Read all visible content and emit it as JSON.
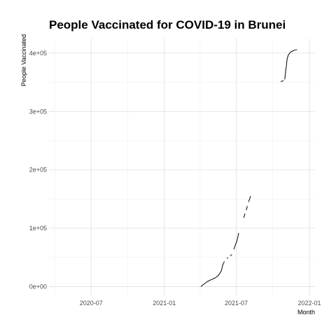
{
  "chart_data": {
    "type": "line",
    "title": "People Vaccinated for COVID-19 in Brunei",
    "xlabel": "Month",
    "ylabel": "People Vaccinated",
    "x_ticks": [
      "2020-07",
      "2021-01",
      "2021-07",
      "2022-01"
    ],
    "y_ticks": [
      "0e+00",
      "1e+05",
      "2e+05",
      "3e+05",
      "4e+05"
    ],
    "xlim": [
      "2020-03-17",
      "2022-01-15"
    ],
    "ylim": [
      -15000,
      425000
    ],
    "grid": true,
    "legend": "none",
    "line_color": "#000000",
    "series": [
      {
        "segments": [
          [
            [
              "2021-04-03",
              0
            ],
            [
              "2021-04-08",
              3000
            ],
            [
              "2021-04-14",
              6000
            ],
            [
              "2021-04-20",
              9000
            ],
            [
              "2021-04-26",
              11000
            ],
            [
              "2021-05-03",
              13000
            ],
            [
              "2021-05-09",
              15000
            ],
            [
              "2021-05-15",
              18000
            ],
            [
              "2021-05-20",
              22000
            ],
            [
              "2021-05-25",
              28000
            ],
            [
              "2021-05-28",
              37000
            ],
            [
              "2021-06-01",
              43000
            ]
          ],
          [
            [
              "2021-06-08",
              48000
            ],
            [
              "2021-06-10",
              50000
            ]
          ],
          [
            [
              "2021-06-16",
              53000
            ],
            [
              "2021-06-20",
              55000
            ]
          ],
          [
            [
              "2021-06-25",
              64000
            ],
            [
              "2021-06-28",
              70000
            ],
            [
              "2021-07-02",
              77000
            ],
            [
              "2021-07-05",
              85000
            ],
            [
              "2021-07-07",
              92000
            ]
          ],
          [
            [
              "2021-07-20",
              118000
            ],
            [
              "2021-07-23",
              125000
            ]
          ],
          [
            [
              "2021-07-26",
              131000
            ],
            [
              "2021-07-29",
              138000
            ]
          ],
          [
            [
              "2021-08-01",
              145000
            ],
            [
              "2021-08-06",
              155000
            ]
          ],
          [
            [
              "2021-10-21",
              351000
            ],
            [
              "2021-10-28",
              353000
            ]
          ],
          [
            [
              "2021-10-31",
              355000
            ],
            [
              "2021-11-02",
              368000
            ],
            [
              "2021-11-04",
              378000
            ],
            [
              "2021-11-06",
              390000
            ],
            [
              "2021-11-09",
              397000
            ],
            [
              "2021-11-15",
              402000
            ],
            [
              "2021-11-24",
              405000
            ],
            [
              "2021-12-01",
              406000
            ]
          ]
        ]
      }
    ]
  }
}
